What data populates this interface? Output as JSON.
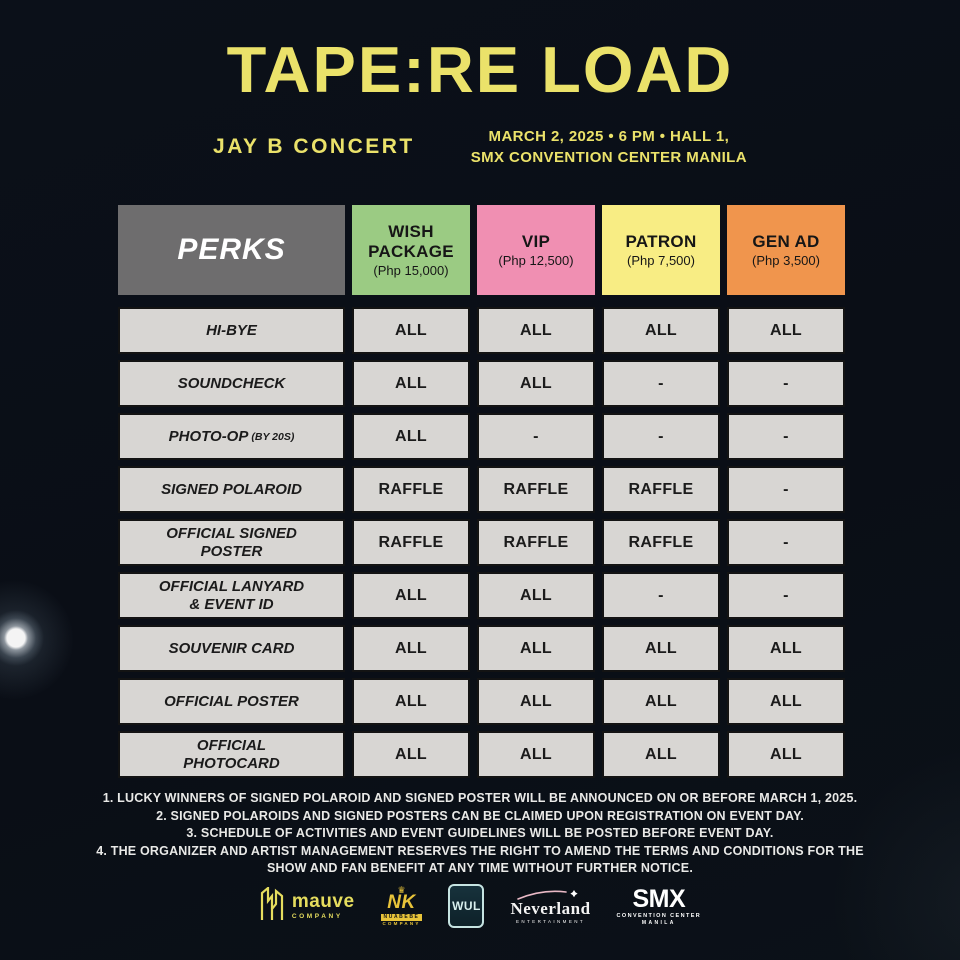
{
  "header": {
    "title": "TAPE:RE LOAD",
    "subtitle_left": "JAY B CONCERT",
    "subtitle_right_line1": "MARCH 2, 2025 • 6 PM • HALL 1,",
    "subtitle_right_line2": "SMX CONVENTION CENTER MANILA"
  },
  "table": {
    "corner_label": "PERKS",
    "tiers": [
      {
        "name": "WISH\nPACKAGE",
        "price": "(Php 15,000)",
        "color": "#9bcb83"
      },
      {
        "name": "VIP",
        "price": "(Php 12,500)",
        "color": "#f08fb2"
      },
      {
        "name": "PATRON",
        "price": "(Php 7,500)",
        "color": "#f8ed84"
      },
      {
        "name": "GEN AD",
        "price": "(Php 3,500)",
        "color": "#f0954d"
      }
    ],
    "rows": [
      {
        "perk": "HI-BYE",
        "values": [
          "ALL",
          "ALL",
          "ALL",
          "ALL"
        ]
      },
      {
        "perk": "SOUNDCHECK",
        "values": [
          "ALL",
          "ALL",
          "-",
          "-"
        ]
      },
      {
        "perk": "PHOTO-OP",
        "note": "(BY 20S)",
        "values": [
          "ALL",
          "-",
          "-",
          "-"
        ]
      },
      {
        "perk": "SIGNED POLAROID",
        "values": [
          "RAFFLE",
          "RAFFLE",
          "RAFFLE",
          "-"
        ]
      },
      {
        "perk": "OFFICIAL SIGNED\nPOSTER",
        "values": [
          "RAFFLE",
          "RAFFLE",
          "RAFFLE",
          "-"
        ]
      },
      {
        "perk": "OFFICIAL LANYARD\n& EVENT ID",
        "values": [
          "ALL",
          "ALL",
          "-",
          "-"
        ]
      },
      {
        "perk": "SOUVENIR CARD",
        "values": [
          "ALL",
          "ALL",
          "ALL",
          "ALL"
        ]
      },
      {
        "perk": "OFFICIAL POSTER",
        "values": [
          "ALL",
          "ALL",
          "ALL",
          "ALL"
        ]
      },
      {
        "perk": "OFFICIAL\nPHOTOCARD",
        "values": [
          "ALL",
          "ALL",
          "ALL",
          "ALL"
        ]
      }
    ]
  },
  "notes": [
    "1. LUCKY WINNERS OF SIGNED POLAROID AND SIGNED POSTER WILL BE ANNOUNCED ON OR BEFORE MARCH 1, 2025.",
    "2. SIGNED POLAROIDS AND SIGNED POSTERS CAN BE CLAIMED UPON REGISTRATION ON EVENT DAY.",
    "3. SCHEDULE OF ACTIVITIES AND EVENT GUIDELINES WILL BE POSTED BEFORE EVENT DAY.",
    "4. THE ORGANIZER AND ARTIST MANAGEMENT RESERVES THE RIGHT TO AMEND THE TERMS AND CONDITIONS FOR THE SHOW AND FAN BENEFIT AT ANY TIME WITHOUT FURTHER NOTICE."
  ],
  "logos": {
    "mauve": {
      "name": "mauve",
      "sub": "COMPANY",
      "color": "#e5dd5e"
    },
    "nk": {
      "crown": "♛",
      "name": "NK",
      "sub1": "NUABEBE",
      "sub2": "COMPANY"
    },
    "wul": {
      "name": "WUL"
    },
    "neverland": {
      "name": "Neverland",
      "sub": "ENTERTAINMENT"
    },
    "smx": {
      "name": "SMX",
      "sub1": "CONVENTION CENTER",
      "sub2": "MANILA"
    }
  }
}
